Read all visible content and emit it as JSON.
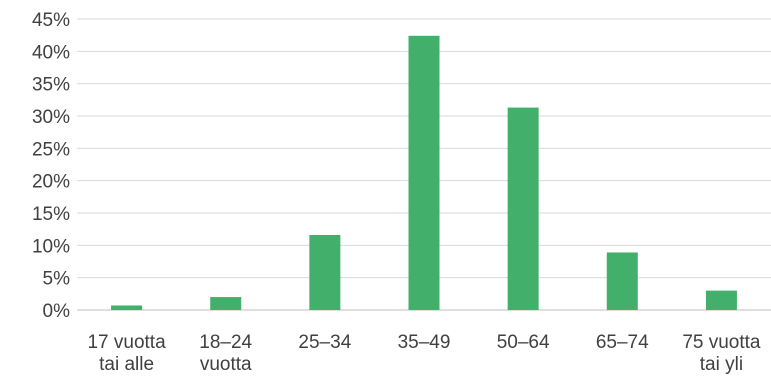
{
  "chart_data": {
    "type": "bar",
    "title": "",
    "xlabel": "",
    "ylabel": "",
    "categories": [
      [
        "17 vuotta",
        "tai alle"
      ],
      [
        "18–24",
        "vuotta"
      ],
      [
        "25–34"
      ],
      [
        "35–49"
      ],
      [
        "50–64"
      ],
      [
        "65–74"
      ],
      [
        "75 vuotta",
        "tai yli"
      ]
    ],
    "values": [
      0.7,
      2.0,
      11.6,
      42.4,
      31.3,
      8.9,
      3.0
    ],
    "ylim": [
      0,
      45
    ],
    "yticks": [
      0,
      5,
      10,
      15,
      20,
      25,
      30,
      35,
      40,
      45
    ],
    "ytick_labels": [
      "0%",
      "5%",
      "10%",
      "15%",
      "20%",
      "25%",
      "30%",
      "35%",
      "40%",
      "45%"
    ],
    "grid": true,
    "legend": "none",
    "colors": {
      "bar": "#42b06a",
      "grid": "#d9d9d9",
      "text": "#404040"
    }
  }
}
